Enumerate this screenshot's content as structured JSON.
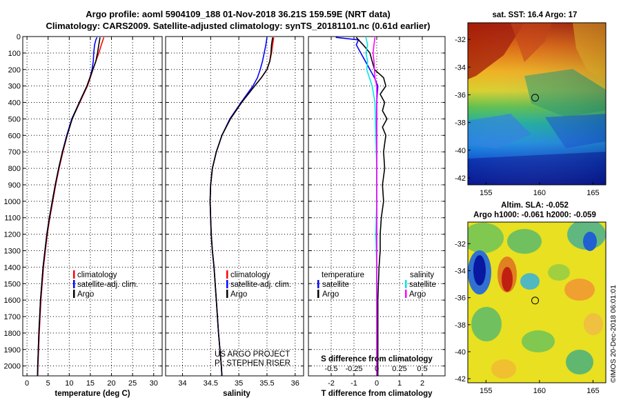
{
  "title": {
    "line1": "Argo profile: aoml 5904109_188 01-Nov-2018 36.21S 159.59E (NRT data)",
    "line2": "Climatology: CARS2009. Satellite-adjusted climatology: synTS_20181101.nc (0.61d earlier)"
  },
  "depth_ticks": [
    "0",
    "100",
    "200",
    "300",
    "400",
    "500",
    "600",
    "700",
    "800",
    "900",
    "1000",
    "1100",
    "1200",
    "1300",
    "1400",
    "1500",
    "1600",
    "1700",
    "1800",
    "1900",
    "2000"
  ],
  "colors": {
    "climatology": "#ff0000",
    "satellite": "#0000ff",
    "argo": "#000000",
    "satellite_s": "#00e5e5",
    "argo_s": "#ff00ff"
  },
  "chart_data": [
    {
      "type": "line",
      "name": "temperature-panel",
      "xlabel": "temperature (deg C)",
      "ylabel": "",
      "xlim": [
        -1,
        32
      ],
      "ylim": [
        2060,
        0
      ],
      "xticks": [
        0,
        5,
        10,
        15,
        20,
        25,
        30
      ],
      "xtick_labels": [
        "0",
        "5",
        "10",
        "15",
        "20",
        "25",
        "30"
      ],
      "grid": true,
      "series": [
        {
          "name": "climatology",
          "color": "#ff0000",
          "depth": [
            5,
            20,
            50,
            100,
            150,
            200,
            250,
            300,
            400,
            500,
            600,
            700,
            800,
            900,
            1000,
            1100,
            1200,
            1400,
            1600,
            1800,
            2000,
            2060
          ],
          "values": [
            18.2,
            18,
            17.6,
            17,
            16.3,
            15.6,
            15,
            14.3,
            12.5,
            10.7,
            9.5,
            8.5,
            7.6,
            6.8,
            6.1,
            5.4,
            4.8,
            3.9,
            3.3,
            2.9,
            2.6,
            2.55
          ]
        },
        {
          "name": "satellite-adj. clim.",
          "color": "#0000ff",
          "depth": [
            5,
            20,
            50,
            100,
            150,
            200,
            250,
            300,
            400,
            500,
            600,
            700,
            800,
            900,
            1000,
            1100,
            1200,
            1400,
            1600,
            1800,
            2000,
            2060
          ],
          "values": [
            16.6,
            16.3,
            16,
            15.8,
            15.7,
            15.4,
            14.9,
            14.2,
            12.4,
            10.6,
            9.4,
            8.4,
            7.5,
            6.7,
            6,
            5.3,
            4.7,
            3.8,
            3.2,
            2.8,
            2.55,
            2.5
          ]
        },
        {
          "name": "Argo",
          "color": "#000000",
          "depth": [
            5,
            20,
            50,
            100,
            150,
            200,
            250,
            300,
            400,
            500,
            600,
            700,
            800,
            900,
            1000,
            1100,
            1200,
            1400,
            1600,
            1800,
            2000,
            2060
          ],
          "values": [
            17.3,
            17.2,
            17,
            16.7,
            16.3,
            15.6,
            14.9,
            14.2,
            12.4,
            10.7,
            9.5,
            8.4,
            7.5,
            6.7,
            6,
            5.3,
            4.7,
            3.8,
            3.2,
            2.8,
            2.55,
            2.5
          ]
        }
      ],
      "legend": [
        "climatology",
        "satellite-adj. clim.",
        "Argo"
      ]
    },
    {
      "type": "line",
      "name": "salinity-panel",
      "xlabel": "salinity",
      "xlim": [
        33.7,
        36.15
      ],
      "ylim": [
        2060,
        0
      ],
      "xticks": [
        34,
        34.5,
        35,
        35.5,
        36
      ],
      "xtick_labels": [
        "34",
        "34.5",
        "35",
        "35.5",
        "36"
      ],
      "grid": true,
      "series": [
        {
          "name": "climatology",
          "color": "#ff0000",
          "depth": [
            5,
            50,
            100,
            150,
            200,
            250,
            300,
            400,
            500,
            600,
            700,
            800,
            900,
            1000,
            1100,
            1200,
            1300,
            1400,
            1600,
            1800,
            2000,
            2060
          ],
          "values": [
            35.62,
            35.6,
            35.58,
            35.55,
            35.5,
            35.4,
            35.28,
            35.05,
            34.85,
            34.7,
            34.6,
            34.53,
            34.5,
            34.49,
            34.5,
            34.51,
            34.53,
            34.56,
            34.6,
            34.64,
            34.69,
            34.7
          ]
        },
        {
          "name": "satellite-adj. clim.",
          "color": "#0000ff",
          "depth": [
            5,
            50,
            100,
            150,
            200,
            250,
            300,
            400,
            500,
            600,
            700,
            800,
            900,
            1000,
            1100,
            1200,
            1300,
            1400,
            1600,
            1800,
            2000,
            2060
          ],
          "values": [
            35.5,
            35.48,
            35.45,
            35.42,
            35.38,
            35.33,
            35.25,
            35.04,
            34.84,
            34.7,
            34.6,
            34.53,
            34.5,
            34.49,
            34.5,
            34.51,
            34.53,
            34.56,
            34.6,
            34.64,
            34.69,
            34.7
          ]
        },
        {
          "name": "Argo",
          "color": "#000000",
          "depth": [
            5,
            50,
            100,
            150,
            200,
            250,
            300,
            400,
            500,
            600,
            700,
            800,
            900,
            1000,
            1100,
            1200,
            1300,
            1400,
            1600,
            1800,
            2000,
            2060
          ],
          "values": [
            35.6,
            35.58,
            35.57,
            35.55,
            35.5,
            35.4,
            35.28,
            35.05,
            34.85,
            34.7,
            34.6,
            34.53,
            34.5,
            34.49,
            34.5,
            34.51,
            34.53,
            34.56,
            34.6,
            34.64,
            34.69,
            34.7
          ]
        }
      ],
      "legend": [
        "climatology",
        "satellite-adj. clim.",
        "Argo"
      ],
      "annotation": [
        "US ARGO PROJECT",
        "PI: STEPHEN RISER"
      ]
    },
    {
      "type": "line",
      "name": "difference-panel",
      "xlabel": "T difference from climatology",
      "xlabel_top": "S difference from climatology",
      "xlim": [
        -3,
        3
      ],
      "ylim": [
        2060,
        0
      ],
      "xticks": [
        -2,
        -1,
        0,
        1,
        2
      ],
      "xtick_labels": [
        "-2",
        "-1",
        "0",
        "1",
        "2"
      ],
      "s_ticks": [
        -0.5,
        -0.25,
        0,
        0.25,
        0.5
      ],
      "s_tick_labels": [
        "-0.5",
        "-0.25",
        "0",
        "0.25",
        "0.5"
      ],
      "grid": true,
      "series": [
        {
          "name": "T satellite",
          "color": "#0000ff",
          "depth": [
            5,
            20,
            50,
            100,
            150,
            200,
            250,
            300,
            350,
            400,
            500,
            700,
            1000,
            1500,
            2060
          ],
          "values": [
            -1.8,
            -0.8,
            -0.9,
            -0.7,
            -0.5,
            -0.3,
            -0.1,
            0.05,
            0.02,
            0.0,
            0.0,
            0.0,
            0.0,
            0.0,
            0.0
          ]
        },
        {
          "name": "T Argo",
          "color": "#000000",
          "depth": [
            5,
            20,
            50,
            100,
            200,
            250,
            300,
            350,
            400,
            450,
            500,
            550,
            600,
            650,
            700,
            800,
            900,
            1000,
            1100,
            1200,
            1300,
            1400,
            1600,
            1800,
            2060
          ],
          "values": [
            -0.9,
            -0.8,
            -0.6,
            -0.3,
            -0.1,
            0.3,
            0.4,
            0.15,
            0.35,
            0.25,
            0.45,
            0.25,
            0.4,
            0.35,
            0.3,
            0.35,
            0.25,
            0.3,
            0.2,
            0.15,
            0.15,
            0.1,
            0.05,
            0.05,
            0.05
          ]
        },
        {
          "name": "S satellite",
          "color": "#00e5e5",
          "depth": [
            5,
            50,
            100,
            150,
            200,
            250,
            300,
            400,
            600,
            800,
            1000,
            1200,
            1400,
            1600,
            2060
          ],
          "values": [
            -0.12,
            -0.1,
            -0.12,
            -0.1,
            -0.11,
            -0.08,
            -0.05,
            -0.02,
            -0.01,
            0.0,
            0.0,
            -0.01,
            0.0,
            0.0,
            0.0
          ]
        },
        {
          "name": "S Argo",
          "color": "#ff00ff",
          "depth": [
            5,
            50,
            100,
            150,
            250,
            300,
            400,
            600,
            800,
            1000,
            1200,
            1400,
            1600,
            2060
          ],
          "values": [
            -0.02,
            -0.03,
            -0.04,
            -0.03,
            -0.02,
            0.0,
            0.0,
            0.0,
            0.0,
            0.0,
            0.0,
            0.0,
            0.0,
            0.0
          ]
        }
      ],
      "legend_left_title": "temperature",
      "legend_left": [
        "satellite",
        "Argo"
      ],
      "legend_right_title": "salinity",
      "legend_right": [
        "satellite",
        "Argo"
      ]
    },
    {
      "type": "heatmap",
      "name": "sst-map",
      "title": "sat. SST: 16.4 Argo: 17",
      "xlim": [
        153.3,
        166.2
      ],
      "ylim": [
        -42.5,
        -30.8
      ],
      "xticks": [
        155,
        160,
        165
      ],
      "yticks": [
        -32,
        -34,
        -36,
        -38,
        -40,
        -42
      ],
      "xtick_labels": [
        "155",
        "160",
        "165"
      ],
      "ytick_labels": [
        "-32",
        "-34",
        "-36",
        "-38",
        "-40",
        "-42"
      ],
      "marker": {
        "lon": 159.59,
        "lat": -36.21
      }
    },
    {
      "type": "heatmap",
      "name": "sla-map",
      "title": "Altim. SLA: -0.052",
      "subtitle": "Argo h1000: -0.061 h2000: -0.059",
      "xlim": [
        153.3,
        166.2
      ],
      "ylim": [
        -42.3,
        -30.4
      ],
      "xticks": [
        155,
        160,
        165
      ],
      "yticks": [
        -32,
        -34,
        -36,
        -38,
        -40,
        -42
      ],
      "xtick_labels": [
        "155",
        "160",
        "165"
      ],
      "ytick_labels": [
        "-32",
        "-34",
        "-36",
        "-38",
        "-40",
        "-42"
      ],
      "marker": {
        "lon": 159.59,
        "lat": -36.21
      }
    }
  ],
  "credit": "©IMOS 20-Dec-2018 06:01:01"
}
